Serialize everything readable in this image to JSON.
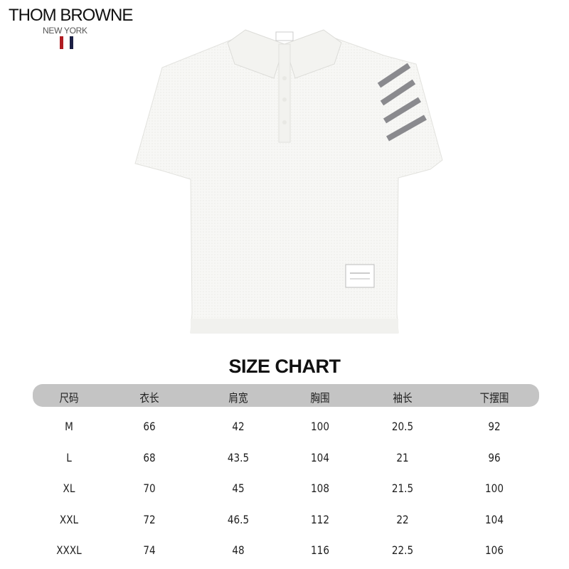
{
  "logo": {
    "brand": "THOM BROWNE",
    "city": "NEW YORK",
    "flag_colors": [
      "#b01c22",
      "#1b1f44"
    ]
  },
  "product": {
    "description_visible": false,
    "color": "#f6f6f4",
    "stripe_color": "#8a8a8e"
  },
  "size_chart": {
    "title": "SIZE CHART",
    "headers": [
      "尺码",
      "衣长",
      "肩宽",
      "胸围",
      "袖长",
      "下摆围"
    ],
    "rows": [
      [
        "M",
        "66",
        "42",
        "100",
        "20.5",
        "92"
      ],
      [
        "L",
        "68",
        "43.5",
        "104",
        "21",
        "96"
      ],
      [
        "XL",
        "70",
        "45",
        "108",
        "21.5",
        "100"
      ],
      [
        "XXL",
        "72",
        "46.5",
        "112",
        "22",
        "104"
      ],
      [
        "XXXL",
        "74",
        "48",
        "116",
        "22.5",
        "106"
      ]
    ]
  }
}
